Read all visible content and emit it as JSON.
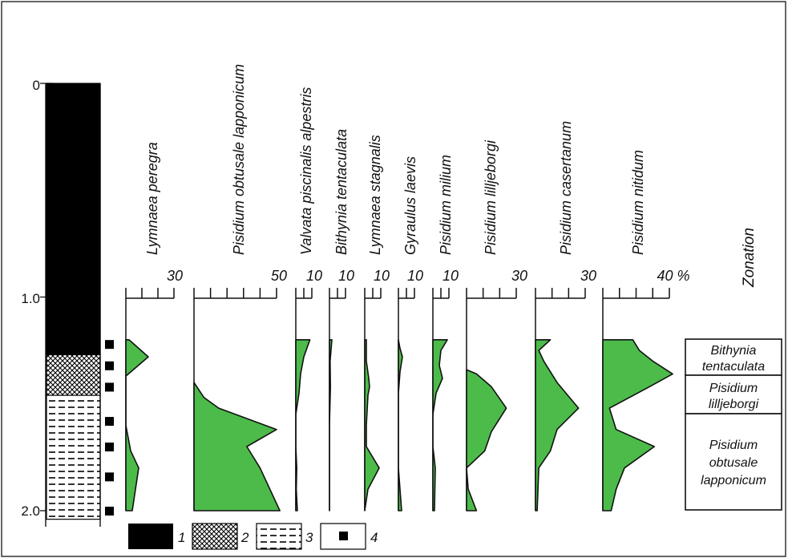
{
  "chart_data": {
    "type": "area",
    "title": "",
    "depth_axis": {
      "range": [
        0,
        2.0
      ],
      "tick_labels": [
        "0",
        "1.0",
        "2.0"
      ],
      "minor_step": 0.1,
      "orientation": "depth increasing downward"
    },
    "sample_depths": [
      1.22,
      1.32,
      1.42,
      1.58,
      1.7,
      1.84,
      2.0
    ],
    "lithology": [
      {
        "from": 0.0,
        "to": 1.27,
        "type": "1"
      },
      {
        "from": 1.27,
        "to": 1.46,
        "type": "2"
      },
      {
        "from": 1.46,
        "to": 2.04,
        "type": "3"
      }
    ],
    "legend": [
      {
        "label": "1",
        "pattern": "solid-black"
      },
      {
        "label": "2",
        "pattern": "cross-hatch"
      },
      {
        "label": "3",
        "pattern": "dashed-lines"
      },
      {
        "label": "4",
        "pattern": "black-square-sample"
      }
    ],
    "percent_unit": "%",
    "series": [
      {
        "name": "Lymnaea peregra",
        "max_label": "30",
        "scale_max": 30,
        "ticks": 3,
        "points": [
          [
            1.2,
            0
          ],
          [
            1.2,
            2
          ],
          [
            1.22,
            5
          ],
          [
            1.28,
            14
          ],
          [
            1.37,
            0
          ],
          [
            1.41,
            0
          ],
          [
            1.5,
            0
          ],
          [
            1.6,
            0
          ],
          [
            1.72,
            3
          ],
          [
            1.8,
            8
          ],
          [
            1.9,
            6
          ],
          [
            2.0,
            4
          ],
          [
            2.0,
            0
          ]
        ]
      },
      {
        "name": "Pisidium obtusale lapponicum",
        "max_label": "50",
        "scale_max": 50,
        "ticks": 5,
        "points": [
          [
            1.4,
            0
          ],
          [
            1.47,
            6
          ],
          [
            1.52,
            15
          ],
          [
            1.62,
            50
          ],
          [
            1.7,
            32
          ],
          [
            1.8,
            40
          ],
          [
            2.0,
            52
          ],
          [
            2.0,
            0
          ]
        ]
      },
      {
        "name": "Valvata piscinalis alpestris",
        "max_label": "10",
        "scale_max": 10,
        "ticks": 2,
        "points": [
          [
            1.2,
            0
          ],
          [
            1.2,
            8.8
          ],
          [
            1.28,
            5
          ],
          [
            1.36,
            3
          ],
          [
            1.45,
            2
          ],
          [
            1.55,
            0
          ],
          [
            1.7,
            0
          ],
          [
            1.8,
            0.6
          ],
          [
            1.9,
            0.3
          ],
          [
            2.0,
            1
          ],
          [
            2.0,
            0
          ]
        ]
      },
      {
        "name": "Bithynia tentaculata",
        "max_label": "10",
        "scale_max": 10,
        "ticks": 2,
        "points": [
          [
            1.2,
            0
          ],
          [
            1.2,
            1.5
          ],
          [
            1.3,
            0.4
          ],
          [
            1.42,
            0.6
          ],
          [
            1.6,
            0
          ],
          [
            2.0,
            0
          ],
          [
            2.0,
            0
          ]
        ]
      },
      {
        "name": "Lymnaea stagnalis",
        "max_label": "10",
        "scale_max": 10,
        "ticks": 2,
        "points": [
          [
            1.2,
            0
          ],
          [
            1.2,
            1
          ],
          [
            1.3,
            1
          ],
          [
            1.38,
            2.5
          ],
          [
            1.42,
            3
          ],
          [
            1.46,
            2
          ],
          [
            1.6,
            1
          ],
          [
            1.7,
            1
          ],
          [
            1.8,
            9
          ],
          [
            1.9,
            2
          ],
          [
            2.0,
            0
          ],
          [
            2.0,
            0
          ]
        ]
      },
      {
        "name": "Gyraulus laevis",
        "max_label": "10",
        "scale_max": 10,
        "ticks": 2,
        "points": [
          [
            1.2,
            0
          ],
          [
            1.24,
            1
          ],
          [
            1.28,
            2.5
          ],
          [
            1.35,
            1
          ],
          [
            1.45,
            0
          ],
          [
            1.8,
            0
          ],
          [
            1.95,
            1.5
          ],
          [
            2.0,
            2
          ],
          [
            2.0,
            0
          ]
        ]
      },
      {
        "name": "Pisidium milium",
        "max_label": "10",
        "scale_max": 10,
        "ticks": 2,
        "points": [
          [
            1.2,
            0
          ],
          [
            1.2,
            9
          ],
          [
            1.25,
            5
          ],
          [
            1.32,
            4
          ],
          [
            1.38,
            6
          ],
          [
            1.45,
            2
          ],
          [
            1.55,
            0
          ],
          [
            1.7,
            0
          ],
          [
            1.8,
            1.5
          ],
          [
            2.0,
            1
          ],
          [
            2.0,
            0
          ]
        ]
      },
      {
        "name": "Pisidium lilljeborgi",
        "max_label": "30",
        "scale_max": 30,
        "ticks": 3,
        "points": [
          [
            1.34,
            0
          ],
          [
            1.36,
            6
          ],
          [
            1.42,
            15
          ],
          [
            1.52,
            24
          ],
          [
            1.63,
            15
          ],
          [
            1.72,
            11
          ],
          [
            1.8,
            0
          ],
          [
            1.9,
            1
          ],
          [
            2.0,
            6
          ],
          [
            2.0,
            0
          ]
        ]
      },
      {
        "name": "Pisidium casertanum",
        "max_label": "30",
        "scale_max": 30,
        "ticks": 3,
        "points": [
          [
            1.2,
            0
          ],
          [
            1.2,
            9
          ],
          [
            1.25,
            2
          ],
          [
            1.3,
            5
          ],
          [
            1.4,
            13
          ],
          [
            1.52,
            26
          ],
          [
            1.62,
            13
          ],
          [
            1.72,
            9
          ],
          [
            1.8,
            2
          ],
          [
            2.0,
            1
          ],
          [
            2.0,
            0
          ]
        ]
      },
      {
        "name": "Pisidium nitidum",
        "max_label": "40 %",
        "scale_max": 40,
        "ticks": 4,
        "points": [
          [
            1.2,
            0
          ],
          [
            1.2,
            18
          ],
          [
            1.25,
            22
          ],
          [
            1.3,
            30
          ],
          [
            1.36,
            42
          ],
          [
            1.42,
            28
          ],
          [
            1.52,
            4
          ],
          [
            1.62,
            8
          ],
          [
            1.7,
            31
          ],
          [
            1.8,
            13
          ],
          [
            1.9,
            8
          ],
          [
            2.0,
            5
          ],
          [
            2.0,
            0
          ]
        ]
      }
    ],
    "zonation": {
      "title": "Zonation",
      "zones": [
        {
          "name": "Bithynia tentaculata",
          "lines": [
            "Bithynia",
            "tentaculata"
          ],
          "from": 1.2,
          "to": 1.37
        },
        {
          "name": "Pisidium lilljeborgi",
          "lines": [
            "Pisidium",
            "lilljeborgi"
          ],
          "from": 1.37,
          "to": 1.54
        },
        {
          "name": "Pisidium obtusale lapponicum",
          "lines": [
            "Pisidium",
            "obtusale",
            "lapponicum"
          ],
          "from": 1.54,
          "to": 2.0
        }
      ]
    },
    "colors": {
      "fill": "#4cbb4a",
      "stroke": "#111111",
      "core": "#000000"
    }
  }
}
